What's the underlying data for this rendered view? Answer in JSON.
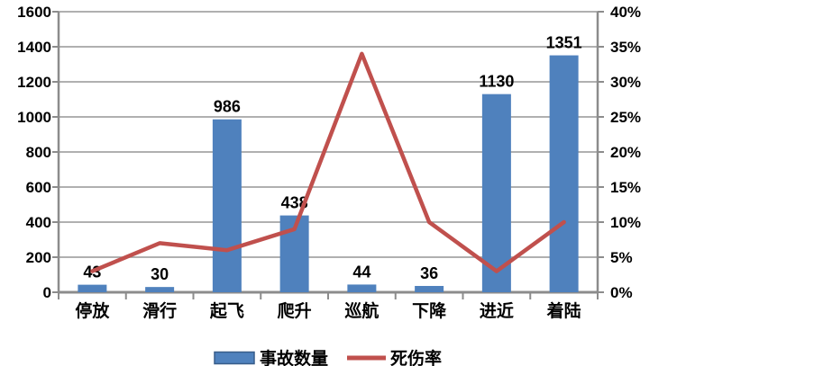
{
  "chart_data": {
    "type": "bar",
    "subtype": "bar-line-combo",
    "title": "",
    "categories": [
      "停放",
      "滑行",
      "起飞",
      "爬升",
      "巡航",
      "下降",
      "进近",
      "着陆"
    ],
    "series": [
      {
        "name": "事故数量",
        "type": "bar",
        "axis": "left",
        "color": "#4f81bd",
        "values": [
          43,
          30,
          986,
          438,
          44,
          36,
          1130,
          1351
        ],
        "data_labels": [
          "43",
          "30",
          "986",
          "438",
          "44",
          "36",
          "1130",
          "1351"
        ]
      },
      {
        "name": "死伤率",
        "type": "line",
        "axis": "right",
        "color": "#c0504d",
        "values": [
          3,
          7,
          6,
          9,
          34,
          10,
          3,
          10
        ]
      }
    ],
    "left_axis": {
      "min": 0,
      "max": 1600,
      "step": 200,
      "tick_labels": [
        "0",
        "200",
        "400",
        "600",
        "800",
        "1000",
        "1200",
        "1400",
        "1600"
      ]
    },
    "right_axis": {
      "min": 0,
      "max": 40,
      "step": 5,
      "tick_labels": [
        "0%",
        "5%",
        "10%",
        "15%",
        "20%",
        "25%",
        "30%",
        "35%",
        "40%"
      ]
    },
    "grid": true,
    "legend_position": "bottom",
    "legend": [
      {
        "label": "事故数量",
        "swatch": "bar",
        "color": "#4f81bd"
      },
      {
        "label": "死伤率",
        "swatch": "line",
        "color": "#c0504d"
      }
    ],
    "colors": {
      "bar_fill": "#4f81bd",
      "bar_legend_border": "#385d8a",
      "line_stroke": "#c0504d",
      "gridline": "#969696",
      "axis_line": "#8c8c8c",
      "text": "#000000",
      "background": "#ffffff"
    }
  }
}
